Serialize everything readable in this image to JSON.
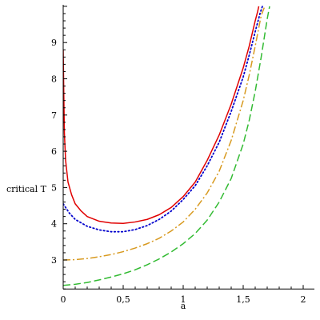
{
  "chart_data": {
    "type": "line",
    "title": "",
    "xlabel": "a",
    "ylabel": "critical T",
    "xlim": [
      0,
      2.1
    ],
    "ylim": [
      2.2,
      10
    ],
    "grid": false,
    "legend": "none",
    "xticks": [
      0,
      0.5,
      1,
      1.5,
      2
    ],
    "xtick_labels": [
      "0",
      "0,5",
      "1",
      "1,5",
      "2"
    ],
    "yticks": [
      3,
      4,
      5,
      6,
      7,
      8,
      9
    ],
    "ytick_labels": [
      "3",
      "4",
      "5",
      "6",
      "7",
      "8",
      "9"
    ],
    "series": [
      {
        "color": "#e00000",
        "dash": "solid",
        "x": [
          0.0,
          0.005,
          0.01,
          0.02,
          0.04,
          0.07,
          0.1,
          0.15,
          0.2,
          0.3,
          0.4,
          0.5,
          0.6,
          0.7,
          0.8,
          0.9,
          1.0,
          1.1,
          1.2,
          1.3,
          1.4,
          1.5,
          1.55,
          1.6,
          1.62,
          1.63
        ],
        "y": [
          8.8,
          7.6,
          6.5,
          5.75,
          5.15,
          4.8,
          4.55,
          4.35,
          4.2,
          4.07,
          4.02,
          4.01,
          4.05,
          4.12,
          4.25,
          4.45,
          4.75,
          5.15,
          5.75,
          6.45,
          7.3,
          8.3,
          8.9,
          9.6,
          9.85,
          10.0
        ]
      },
      {
        "color": "#0000cc",
        "dash": "dotted",
        "x": [
          0.0,
          0.05,
          0.1,
          0.2,
          0.3,
          0.4,
          0.5,
          0.6,
          0.7,
          0.8,
          0.9,
          1.0,
          1.1,
          1.2,
          1.3,
          1.4,
          1.5,
          1.55,
          1.6,
          1.64,
          1.66
        ],
        "y": [
          4.55,
          4.3,
          4.12,
          3.93,
          3.83,
          3.78,
          3.78,
          3.84,
          3.95,
          4.12,
          4.35,
          4.67,
          5.05,
          5.6,
          6.25,
          7.1,
          8.05,
          8.65,
          9.3,
          9.8,
          10.0
        ]
      },
      {
        "color": "#d89a20",
        "dash": "dashdot",
        "x": [
          0.0,
          0.1,
          0.2,
          0.3,
          0.4,
          0.5,
          0.6,
          0.7,
          0.8,
          0.9,
          1.0,
          1.1,
          1.2,
          1.3,
          1.4,
          1.5,
          1.55,
          1.6,
          1.65,
          1.68
        ],
        "y": [
          3.0,
          3.01,
          3.04,
          3.09,
          3.15,
          3.23,
          3.33,
          3.45,
          3.6,
          3.8,
          4.05,
          4.4,
          4.85,
          5.45,
          6.3,
          7.4,
          8.1,
          8.9,
          9.75,
          10.0
        ]
      },
      {
        "color": "#33bb33",
        "dash": "dashed",
        "x": [
          0.0,
          0.1,
          0.2,
          0.3,
          0.4,
          0.5,
          0.6,
          0.7,
          0.8,
          0.9,
          1.0,
          1.1,
          1.2,
          1.3,
          1.4,
          1.5,
          1.55,
          1.6,
          1.65,
          1.7,
          1.72
        ],
        "y": [
          2.3,
          2.33,
          2.38,
          2.45,
          2.53,
          2.62,
          2.73,
          2.87,
          3.03,
          3.22,
          3.45,
          3.73,
          4.1,
          4.6,
          5.25,
          6.2,
          6.85,
          7.65,
          8.6,
          9.65,
          10.0
        ]
      }
    ]
  }
}
